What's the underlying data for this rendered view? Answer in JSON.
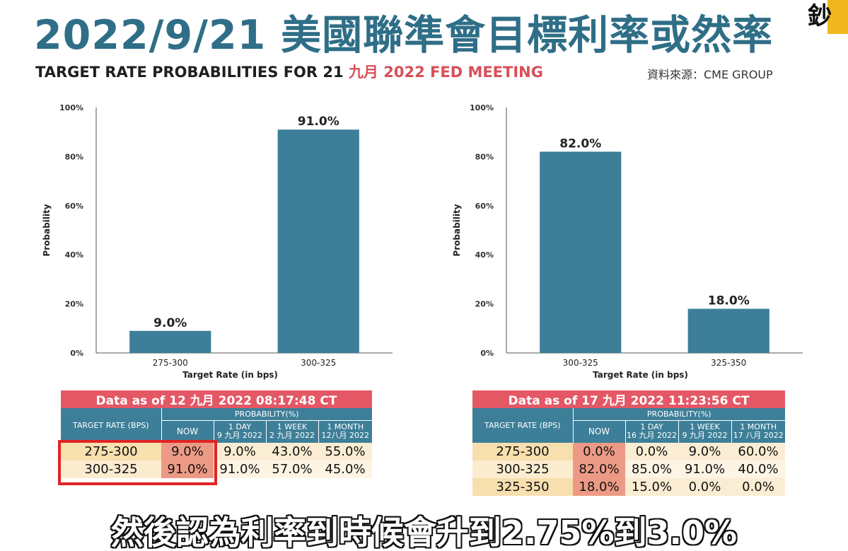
{
  "header": {
    "title": "2022/9/21 美國聯準會目標利率或然率",
    "subtitle_main": "TARGET RATE PROBABILITIES FOR 21 ",
    "subtitle_highlight": "九月 2022 FED MEETING",
    "source": "資料來源：CME GROUP",
    "logo_glyph": "鈔"
  },
  "chart_data": [
    {
      "type": "bar",
      "categories": [
        "275-300",
        "300-325"
      ],
      "values": [
        9.0,
        91.0
      ],
      "data_labels": [
        "9.0%",
        "91.0%"
      ],
      "xlabel": "Target Rate (in bps)",
      "ylabel": "Probability",
      "yticks": [
        "0%",
        "20%",
        "40%",
        "60%",
        "80%",
        "100%"
      ],
      "ylim": [
        0,
        100
      ],
      "color": "#3d7f98"
    },
    {
      "type": "bar",
      "categories": [
        "300-325",
        "325-350"
      ],
      "values": [
        82.0,
        18.0
      ],
      "data_labels": [
        "82.0%",
        "18.0%"
      ],
      "xlabel": "Target Rate (in bps)",
      "ylabel": "Probability",
      "yticks": [
        "0%",
        "20%",
        "40%",
        "60%",
        "80%",
        "100%"
      ],
      "ylim": [
        0,
        100
      ],
      "color": "#3d7f98"
    }
  ],
  "tables": [
    {
      "data_as_of": "Data as of 12 九月 2022  08:17:48 CT",
      "probability_header": "PROBABILITY(%)",
      "target_rate_header": "TARGET RATE (BPS)",
      "col_now": "NOW",
      "cols": [
        {
          "line1": "1 DAY",
          "line2": "9 九月 2022"
        },
        {
          "line1": "1 WEEK",
          "line2": "2 九月 2022"
        },
        {
          "line1": "1 MONTH",
          "line2": "12八月 2022"
        }
      ],
      "rows": [
        {
          "rate": "275-300",
          "now": "9.0%",
          "day": "9.0%",
          "week": "43.0%",
          "month": "55.0%"
        },
        {
          "rate": "300-325",
          "now": "91.0%",
          "day": "91.0%",
          "week": "57.0%",
          "month": "45.0%"
        }
      ]
    },
    {
      "data_as_of": "Data as of 17 九月 2022  11:23:56 CT",
      "probability_header": "PROBABILITY(%)",
      "target_rate_header": "TARGET RATE (BPS)",
      "col_now": "NOW",
      "cols": [
        {
          "line1": "1 DAY",
          "line2": "16 九月 2022"
        },
        {
          "line1": "1 WEEK",
          "line2": "9 九月 2022"
        },
        {
          "line1": "1 MONTH",
          "line2": "17 八月 2022"
        }
      ],
      "rows": [
        {
          "rate": "275-300",
          "now": "0.0%",
          "day": "0.0%",
          "week": "9.0%",
          "month": "60.0%"
        },
        {
          "rate": "300-325",
          "now": "82.0%",
          "day": "85.0%",
          "week": "91.0%",
          "month": "40.0%"
        },
        {
          "rate": "325-350",
          "now": "18.0%",
          "day": "15.0%",
          "week": "0.0%",
          "month": "0.0%"
        }
      ]
    }
  ],
  "caption": "然後認為利率到時候會升到2.75%到3.0%"
}
